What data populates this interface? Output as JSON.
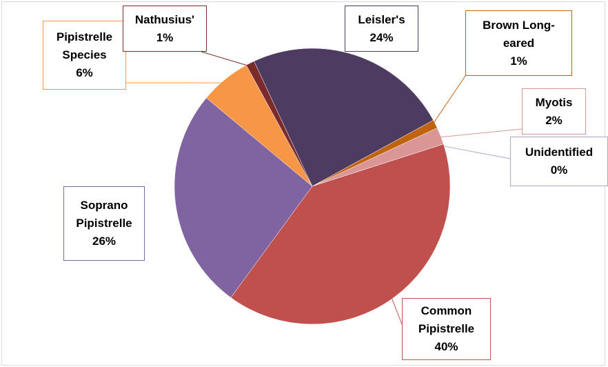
{
  "chart_data": {
    "type": "pie",
    "categories": [
      "Leisler's",
      "Brown Long-eared",
      "Myotis",
      "Unidentified",
      "Common Pipistrelle",
      "Soprano Pipistrelle",
      "Pipistrelle Species",
      "Nathusius'"
    ],
    "values": [
      24,
      1,
      2,
      0,
      40,
      26,
      6,
      1
    ],
    "value_labels": [
      "24%",
      "1%",
      "2%",
      "0%",
      "40%",
      "26%",
      "6%",
      "1%"
    ],
    "colors": [
      "#4d3b62",
      "#c0630f",
      "#d99694",
      "#b3a2c7",
      "#c0504d",
      "#8064a2",
      "#f79646",
      "#7b2c2a"
    ]
  }
}
